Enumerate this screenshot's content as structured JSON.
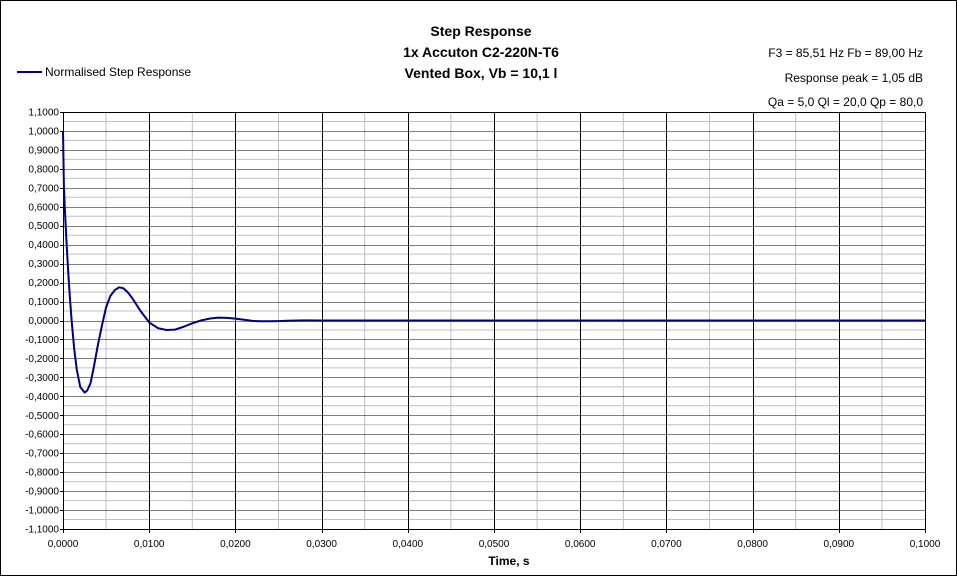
{
  "chart_data": {
    "type": "line",
    "title_lines": [
      "Step Response",
      "1x Accuton C2-220N-T6",
      "Vented Box, Vb = 10,1 l"
    ],
    "info_lines": [
      "F3 = 85,51 Hz  Fb = 89,00 Hz",
      "Response peak = 1,05 dB",
      "Qa = 5,0   Ql = 20,0   Qp = 80,0"
    ],
    "xlabel": "Time, s",
    "ylabel": "",
    "xlim": [
      0,
      0.1
    ],
    "ylim": [
      -1.1,
      1.1
    ],
    "grid": true,
    "legend_position": "top-left",
    "colors": {
      "line": "#000080",
      "grid": "#000000",
      "minor_grid": "#c0c0c0"
    },
    "x_ticks": [
      "0,0000",
      "0,0100",
      "0,0200",
      "0,0300",
      "0,0400",
      "0,0500",
      "0,0600",
      "0,0700",
      "0,0800",
      "0,0900",
      "0,1000"
    ],
    "y_ticks": [
      "1,1000",
      "1,0000",
      "0,9000",
      "0,8000",
      "0,7000",
      "0,6000",
      "0,5000",
      "0,4000",
      "0,3000",
      "0,2000",
      "0,1000",
      "0,0000",
      "-0,1000",
      "-0,2000",
      "-0,3000",
      "-0,4000",
      "-0,5000",
      "-0,6000",
      "-0,7000",
      "-0,8000",
      "-0,9000",
      "-1,0000",
      "-1,1000"
    ],
    "series": [
      {
        "name": "Normalised Step Response",
        "x": [
          0,
          0.0001,
          0.0002,
          0.0004,
          0.0006,
          0.0008,
          0.001,
          0.0013,
          0.0016,
          0.002,
          0.0025,
          0.0028,
          0.0032,
          0.0036,
          0.004,
          0.0045,
          0.005,
          0.0055,
          0.006,
          0.0065,
          0.007,
          0.0075,
          0.008,
          0.0085,
          0.009,
          0.0095,
          0.01,
          0.011,
          0.012,
          0.013,
          0.014,
          0.015,
          0.016,
          0.017,
          0.018,
          0.019,
          0.02,
          0.021,
          0.022,
          0.023,
          0.024,
          0.025,
          0.026,
          0.028,
          0.03,
          0.035,
          0.04,
          0.05,
          0.06,
          0.07,
          0.08,
          0.09,
          0.1
        ],
        "y": [
          1.0,
          0.72,
          0.6,
          0.42,
          0.26,
          0.12,
          0.0,
          -0.15,
          -0.26,
          -0.35,
          -0.38,
          -0.37,
          -0.33,
          -0.24,
          -0.14,
          -0.03,
          0.07,
          0.13,
          0.16,
          0.175,
          0.17,
          0.15,
          0.12,
          0.085,
          0.05,
          0.02,
          -0.01,
          -0.04,
          -0.05,
          -0.048,
          -0.033,
          -0.015,
          0.0,
          0.01,
          0.015,
          0.014,
          0.01,
          0.004,
          -0.002,
          -0.004,
          -0.004,
          -0.003,
          -0.001,
          0.0005,
          0.0,
          0.0,
          0.0,
          0.0,
          0.0,
          0.0,
          0.0,
          0.0,
          0.0
        ]
      }
    ]
  }
}
